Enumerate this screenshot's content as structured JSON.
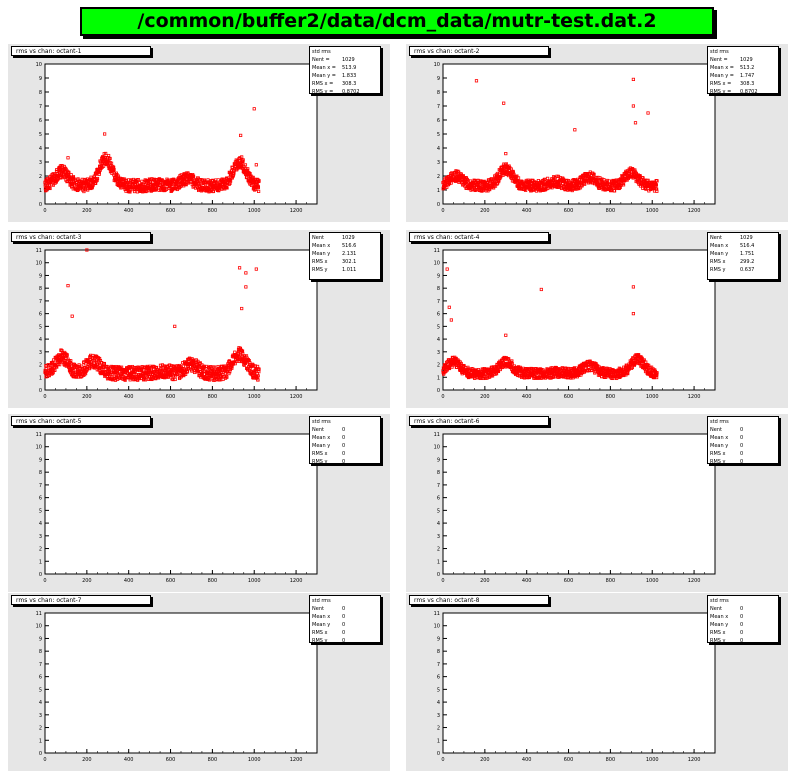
{
  "title": "/common/buffer2/data/dcm_data/mutr-test.dat.2",
  "colors": {
    "title_bg": "#00ff00",
    "pad_bg": "#e6e6e6",
    "marker": "#ff0000"
  },
  "chart_data": [
    {
      "type": "scatter",
      "title": "rms vs chan: octant-1",
      "stats": [
        {
          "k": "std rms",
          "v": ""
        },
        {
          "k": "Nent =",
          "v": "1029"
        },
        {
          "k": "Mean x =",
          "v": "513.9"
        },
        {
          "k": "Mean y =",
          "v": "1.833"
        },
        {
          "k": "RMS x =",
          "v": "308.3"
        },
        {
          "k": "RMS y =",
          "v": "0.8702"
        }
      ],
      "xlim": [
        0,
        1300
      ],
      "ylim": [
        0,
        10
      ],
      "xticks": [
        0,
        200,
        400,
        600,
        800,
        1000,
        1200
      ],
      "yticks": [
        0,
        1,
        2,
        3,
        4,
        5,
        6,
        7,
        8,
        9,
        10
      ],
      "n_points": 1024,
      "base_level": 1.3,
      "noise": 0.45,
      "bumps": [
        [
          80,
          2.3
        ],
        [
          290,
          3.2
        ],
        [
          540,
          1.4
        ],
        [
          680,
          1.8
        ],
        [
          930,
          3.0
        ]
      ],
      "outliers": [
        [
          1000,
          6.8
        ],
        [
          285,
          5.0
        ],
        [
          935,
          4.9
        ],
        [
          1010,
          2.8
        ],
        [
          110,
          3.3
        ]
      ],
      "x": [],
      "y": []
    },
    {
      "type": "scatter",
      "title": "rms vs chan: octant-2",
      "stats": [
        {
          "k": "std rms",
          "v": ""
        },
        {
          "k": "Nent =",
          "v": "1029"
        },
        {
          "k": "Mean x =",
          "v": "513.2"
        },
        {
          "k": "Mean y =",
          "v": "1.747"
        },
        {
          "k": "RMS x =",
          "v": "308.3"
        },
        {
          "k": "RMS y =",
          "v": "0.8702"
        }
      ],
      "xlim": [
        0,
        1300
      ],
      "ylim": [
        0,
        10
      ],
      "xticks": [
        0,
        200,
        400,
        600,
        800,
        1000,
        1200
      ],
      "yticks": [
        0,
        1,
        2,
        3,
        4,
        5,
        6,
        7,
        8,
        9,
        10
      ],
      "n_points": 1024,
      "base_level": 1.3,
      "noise": 0.4,
      "bumps": [
        [
          60,
          2.0
        ],
        [
          300,
          2.5
        ],
        [
          540,
          1.6
        ],
        [
          700,
          1.9
        ],
        [
          900,
          2.2
        ]
      ],
      "outliers": [
        [
          160,
          8.8
        ],
        [
          290,
          7.2
        ],
        [
          910,
          8.9
        ],
        [
          910,
          7.0
        ],
        [
          980,
          6.5
        ],
        [
          630,
          5.3
        ],
        [
          920,
          5.8
        ],
        [
          300,
          3.6
        ]
      ],
      "x": [],
      "y": []
    },
    {
      "type": "scatter",
      "title": "rms vs chan: octant-3",
      "stats": [
        {
          "k": "Nent",
          "v": "1029"
        },
        {
          "k": "Mean x",
          "v": "516.6"
        },
        {
          "k": "Mean y",
          "v": "2.131"
        },
        {
          "k": "RMS x",
          "v": "302.1"
        },
        {
          "k": "RMS y",
          "v": "1.011"
        }
      ],
      "xlim": [
        0,
        1300
      ],
      "ylim": [
        0,
        11
      ],
      "xticks": [
        0,
        200,
        400,
        600,
        800,
        1000,
        1200
      ],
      "yticks": [
        0,
        1,
        2,
        3,
        4,
        5,
        6,
        7,
        8,
        9,
        10,
        11
      ],
      "n_points": 1024,
      "base_level": 1.3,
      "noise": 0.55,
      "bumps": [
        [
          80,
          2.6
        ],
        [
          230,
          2.3
        ],
        [
          560,
          1.5
        ],
        [
          700,
          2.0
        ],
        [
          930,
          2.8
        ]
      ],
      "outliers": [
        [
          200,
          11.0
        ],
        [
          110,
          8.2
        ],
        [
          930,
          9.6
        ],
        [
          960,
          9.2
        ],
        [
          960,
          8.1
        ],
        [
          130,
          5.8
        ],
        [
          620,
          5.0
        ],
        [
          940,
          6.4
        ],
        [
          1010,
          9.5
        ]
      ],
      "x": [],
      "y": []
    },
    {
      "type": "scatter",
      "title": "rms vs chan: octant-4",
      "stats": [
        {
          "k": "Nent",
          "v": "1029"
        },
        {
          "k": "Mean x",
          "v": "516.4"
        },
        {
          "k": "Mean y",
          "v": "1.751"
        },
        {
          "k": "RMS x",
          "v": "299.2"
        },
        {
          "k": "RMS y",
          "v": "0.637"
        }
      ],
      "xlim": [
        0,
        1300
      ],
      "ylim": [
        0,
        11
      ],
      "xticks": [
        0,
        200,
        400,
        600,
        800,
        1000,
        1200
      ],
      "yticks": [
        0,
        1,
        2,
        3,
        4,
        5,
        6,
        7,
        8,
        9,
        10,
        11
      ],
      "n_points": 1024,
      "base_level": 1.3,
      "noise": 0.4,
      "bumps": [
        [
          50,
          2.2
        ],
        [
          300,
          2.2
        ],
        [
          560,
          1.4
        ],
        [
          700,
          1.9
        ],
        [
          930,
          2.4
        ]
      ],
      "outliers": [
        [
          20,
          9.5
        ],
        [
          470,
          7.9
        ],
        [
          910,
          8.1
        ],
        [
          30,
          6.5
        ],
        [
          910,
          6.0
        ],
        [
          300,
          4.3
        ],
        [
          40,
          5.5
        ]
      ],
      "x": [],
      "y": []
    },
    {
      "type": "scatter",
      "title": "rms vs chan: octant-5",
      "stats": [
        {
          "k": "std rms",
          "v": ""
        },
        {
          "k": "Nent",
          "v": "0"
        },
        {
          "k": "Mean x",
          "v": "0"
        },
        {
          "k": "Mean y",
          "v": "0"
        },
        {
          "k": "RMS x",
          "v": "0"
        },
        {
          "k": "RMS y",
          "v": "0"
        }
      ],
      "xlim": [
        0,
        1300
      ],
      "ylim": [
        0,
        11
      ],
      "xticks": [
        0,
        200,
        400,
        600,
        800,
        1000,
        1200
      ],
      "yticks": [
        0,
        1,
        2,
        3,
        4,
        5,
        6,
        7,
        8,
        9,
        10,
        11
      ],
      "n_points": 0,
      "x": [],
      "y": []
    },
    {
      "type": "scatter",
      "title": "rms vs chan: octant-6",
      "stats": [
        {
          "k": "std rms",
          "v": ""
        },
        {
          "k": "Nent",
          "v": "0"
        },
        {
          "k": "Mean x",
          "v": "0"
        },
        {
          "k": "Mean y",
          "v": "0"
        },
        {
          "k": "RMS x",
          "v": "0"
        },
        {
          "k": "RMS y",
          "v": "0"
        }
      ],
      "xlim": [
        0,
        1300
      ],
      "ylim": [
        0,
        11
      ],
      "xticks": [
        0,
        200,
        400,
        600,
        800,
        1000,
        1200
      ],
      "yticks": [
        0,
        1,
        2,
        3,
        4,
        5,
        6,
        7,
        8,
        9,
        10,
        11
      ],
      "n_points": 0,
      "x": [],
      "y": []
    },
    {
      "type": "scatter",
      "title": "rms vs chan: octant-7",
      "stats": [
        {
          "k": "std rms",
          "v": ""
        },
        {
          "k": "Nent",
          "v": "0"
        },
        {
          "k": "Mean x",
          "v": "0"
        },
        {
          "k": "Mean y",
          "v": "0"
        },
        {
          "k": "RMS x",
          "v": "0"
        },
        {
          "k": "RMS y",
          "v": "0"
        }
      ],
      "xlim": [
        0,
        1300
      ],
      "ylim": [
        0,
        11
      ],
      "xticks": [
        0,
        200,
        400,
        600,
        800,
        1000,
        1200
      ],
      "yticks": [
        0,
        1,
        2,
        3,
        4,
        5,
        6,
        7,
        8,
        9,
        10,
        11
      ],
      "n_points": 0,
      "x": [],
      "y": []
    },
    {
      "type": "scatter",
      "title": "rms vs chan: octant-8",
      "stats": [
        {
          "k": "std rms",
          "v": ""
        },
        {
          "k": "Nent",
          "v": "0"
        },
        {
          "k": "Mean x",
          "v": "0"
        },
        {
          "k": "Mean y",
          "v": "0"
        },
        {
          "k": "RMS x",
          "v": "0"
        },
        {
          "k": "RMS y",
          "v": "0"
        }
      ],
      "xlim": [
        0,
        1300
      ],
      "ylim": [
        0,
        11
      ],
      "xticks": [
        0,
        200,
        400,
        600,
        800,
        1000,
        1200
      ],
      "yticks": [
        0,
        1,
        2,
        3,
        4,
        5,
        6,
        7,
        8,
        9,
        10,
        11
      ],
      "n_points": 0,
      "x": [],
      "y": []
    }
  ]
}
